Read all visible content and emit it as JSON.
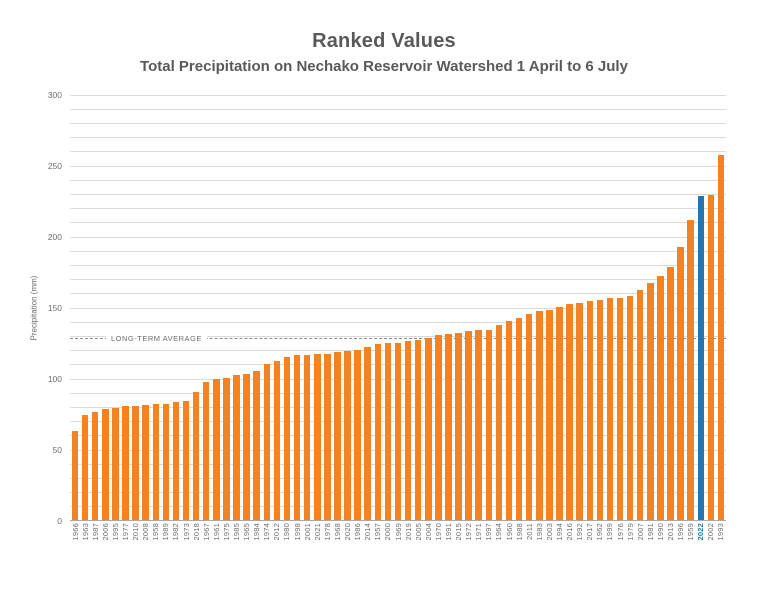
{
  "header": {
    "title": "Ranked Values",
    "subtitle": "Total Precipitation on Nechako Reservoir Watershed 1 April to 6 July"
  },
  "colors": {
    "bar_orange": "#F58220",
    "bar_highlight_blue": "#1F77B4",
    "title_text": "#58595B",
    "axis_text": "#6D6E71",
    "gridline": "#DADADA",
    "average_line": "#8C8C8C"
  },
  "chart_data": {
    "type": "bar",
    "title": "Ranked Values",
    "subtitle": "Total Precipitation on Nechako Reservoir Watershed 1 April to 6 July",
    "xlabel": "",
    "ylabel": "Precipitation (mm)",
    "ylim": [
      0,
      300
    ],
    "yticks": [
      0,
      50,
      100,
      150,
      200,
      250,
      300
    ],
    "minor_gridline_step": 10,
    "grid": "horizontal",
    "legend": "none",
    "sort": "ranked-ascending",
    "bar_color": "#F58220",
    "highlight": {
      "category": "2022",
      "color": "#1F77B4"
    },
    "annotation": {
      "label": "LONG-TERM AVERAGE",
      "value": 129
    },
    "categories": [
      "1966",
      "1963",
      "1987",
      "2006",
      "1995",
      "1977",
      "2010",
      "2008",
      "1958",
      "1989",
      "1982",
      "1973",
      "2018",
      "1967",
      "1961",
      "1975",
      "1985",
      "1965",
      "1984",
      "1974",
      "2012",
      "1980",
      "1998",
      "2001",
      "2021",
      "1978",
      "1968",
      "2020",
      "1986",
      "2014",
      "1957",
      "2000",
      "1969",
      "2019",
      "2005",
      "2004",
      "1970",
      "1991",
      "2015",
      "1972",
      "1971",
      "1997",
      "1964",
      "1960",
      "1988",
      "2011",
      "1983",
      "2003",
      "1994",
      "2016",
      "1992",
      "2017",
      "1962",
      "1999",
      "1976",
      "1979",
      "2007",
      "1981",
      "1990",
      "2013",
      "1996",
      "1959",
      "2022",
      "2002",
      "1993"
    ],
    "values": [
      63,
      74,
      76,
      78,
      79,
      80,
      80,
      81,
      82,
      82,
      83,
      84,
      90,
      97,
      99,
      100,
      102,
      103,
      105,
      110,
      112,
      115,
      116,
      116,
      117,
      117,
      118,
      119,
      120,
      122,
      124,
      125,
      125,
      126,
      127,
      128,
      130,
      131,
      132,
      133,
      134,
      134,
      137,
      140,
      142,
      145,
      147,
      148,
      150,
      152,
      153,
      154,
      155,
      156,
      156,
      158,
      162,
      167,
      172,
      178,
      192,
      211,
      228,
      229,
      257
    ]
  }
}
